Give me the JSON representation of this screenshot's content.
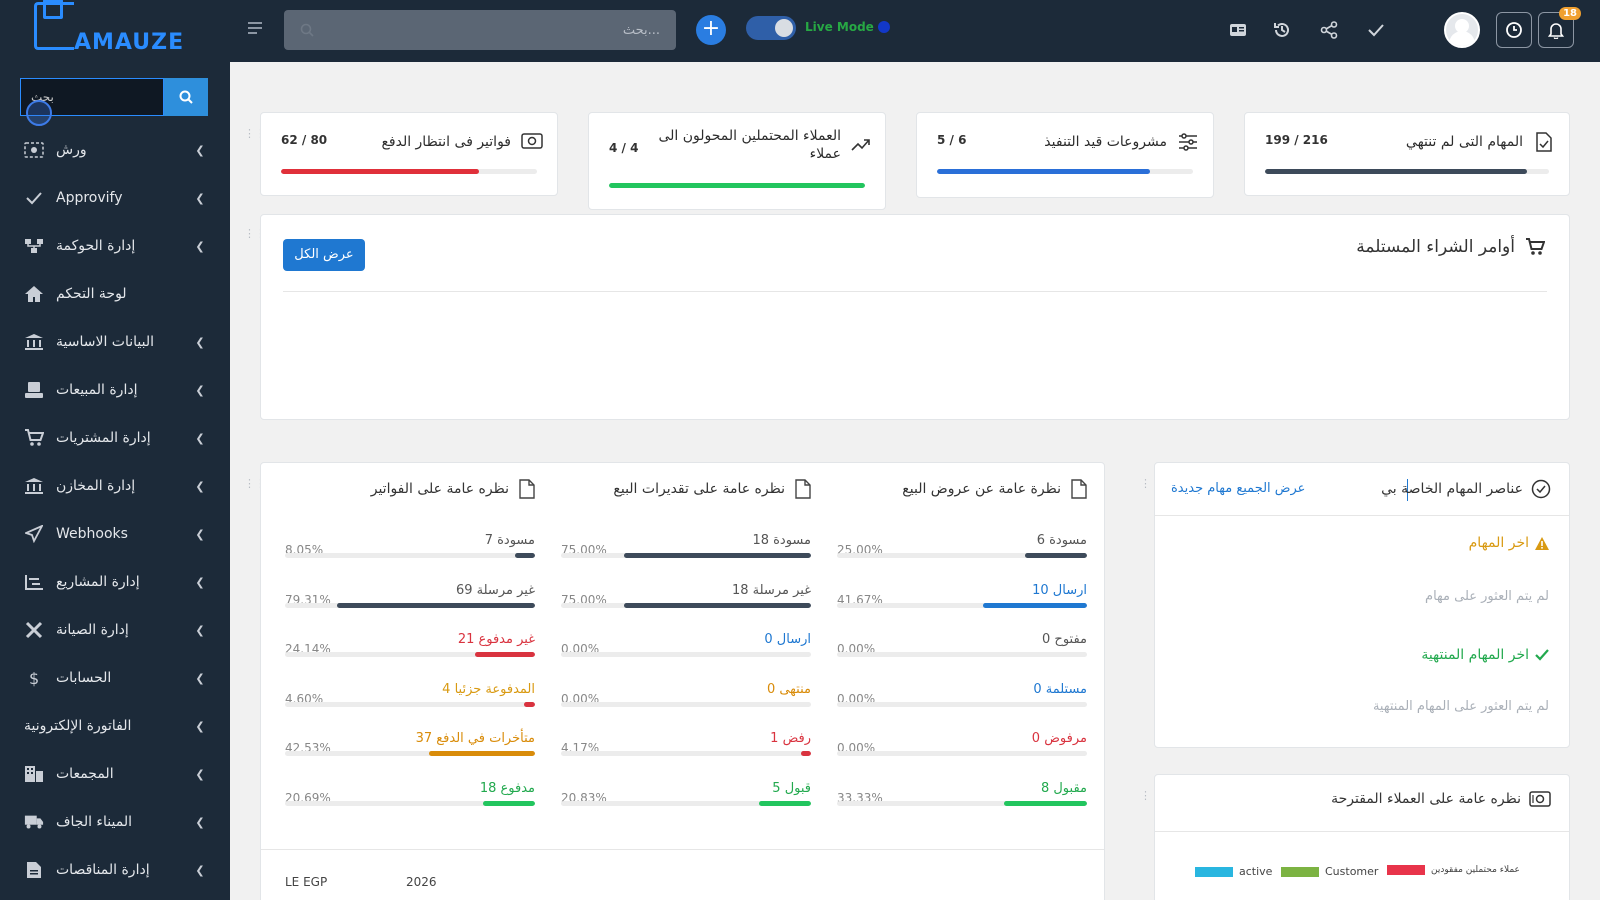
{
  "sidebar": {
    "logo_text": "AMAUZE",
    "search_placeholder": "بحث",
    "items": [
      {
        "label": "ورش",
        "icon": "workshop-icon",
        "chevron": true
      },
      {
        "label": "Approvify",
        "icon": "check-icon",
        "chevron": true
      },
      {
        "label": "إدارة الحوكمة",
        "icon": "governance-icon",
        "chevron": true
      },
      {
        "label": "لوحة التحكم",
        "icon": "home-icon",
        "chevron": false
      },
      {
        "label": "البيانات الاساسية",
        "icon": "bank-icon",
        "chevron": true
      },
      {
        "label": "إدارة المبيعات",
        "icon": "sales-icon",
        "chevron": true
      },
      {
        "label": "إدارة المشتريات",
        "icon": "cart-icon",
        "chevron": true
      },
      {
        "label": "إدارة المخازن",
        "icon": "warehouse-icon",
        "chevron": true
      },
      {
        "label": "Webhooks",
        "icon": "send-icon",
        "chevron": true
      },
      {
        "label": "إدارة المشاريع",
        "icon": "projects-icon",
        "chevron": true
      },
      {
        "label": "إدارة الصيانة",
        "icon": "tools-icon",
        "chevron": true
      },
      {
        "label": "الحسابات",
        "icon": "dollar-icon",
        "chevron": true
      },
      {
        "label": "الفاتورة الإلكترونية",
        "icon": "",
        "chevron": true
      },
      {
        "label": "المجمعات",
        "icon": "building-icon",
        "chevron": true
      },
      {
        "label": "الميناء الجاف",
        "icon": "truck-icon",
        "chevron": true
      },
      {
        "label": "إدارة المناقصات",
        "icon": "document-icon",
        "chevron": true
      }
    ]
  },
  "topbar": {
    "search_placeholder": "بحث...",
    "live_mode_label": "Live Mode",
    "notifications_count": "18"
  },
  "stats": [
    {
      "title": "فواتير فى انتظار الدفع",
      "count": "62 / 80",
      "fill": 0.775,
      "color": "#e0303a",
      "icon": "invoice-icon"
    },
    {
      "title": "العملاء المحتملين المحولون الى عملاء",
      "count": "4 / 4",
      "fill": 1.0,
      "color": "#22c55e",
      "icon": "trend-icon"
    },
    {
      "title": "مشروعات قيد التنفيذ",
      "count": "5 / 6",
      "fill": 0.833,
      "color": "#2a6fd8",
      "icon": "sliders-icon"
    },
    {
      "title": "المهام التى لم تنتهي",
      "count": "199 / 216",
      "fill": 0.921,
      "color": "#3d4a5a",
      "icon": "task-doc-icon"
    }
  ],
  "purchase_orders": {
    "title": "أوامر الشراء المستلمة",
    "view_all": "عرض الكل"
  },
  "overviews": [
    {
      "title": "نظره عامة على الفواتير",
      "rows": [
        {
          "label": "مسودة 7",
          "pct": "8.05%",
          "fill": 0.0805,
          "color": "#3d4a5a",
          "text_color": "#555"
        },
        {
          "label": "غير مرسلة 69",
          "pct": "79.31%",
          "fill": 0.7931,
          "color": "#3d4a5a",
          "text_color": "#555"
        },
        {
          "label": "غير مدفوع 21",
          "pct": "24.14%",
          "fill": 0.2414,
          "color": "#d9333f",
          "text_color": "#d9333f"
        },
        {
          "label": "المدفوعة جزئيا 4",
          "pct": "4.60%",
          "fill": 0.046,
          "color": "#d9333f",
          "text_color": "#d99a12"
        },
        {
          "label": "متأخرات في الدفع 37",
          "pct": "42.53%",
          "fill": 0.4253,
          "color": "#d98c0a",
          "text_color": "#d98c0a"
        },
        {
          "label": "مدفوع 18",
          "pct": "20.69%",
          "fill": 0.2069,
          "color": "#22c55e",
          "text_color": "#22a94e"
        }
      ]
    },
    {
      "title": "نظره عامة على تقديرات البيع",
      "rows": [
        {
          "label": "مسودة 18",
          "pct": "75.00%",
          "fill": 0.75,
          "color": "#3d4a5a",
          "text_color": "#555"
        },
        {
          "label": "غير مرسلة 18",
          "pct": "75.00%",
          "fill": 0.75,
          "color": "#3d4a5a",
          "text_color": "#555"
        },
        {
          "label": "ارسال 0",
          "pct": "0.00%",
          "fill": 0,
          "color": "#1f78d1",
          "text_color": "#1f78d1"
        },
        {
          "label": "منتهى 0",
          "pct": "0.00%",
          "fill": 0,
          "color": "#d98c0a",
          "text_color": "#d98c0a"
        },
        {
          "label": "رفض 1",
          "pct": "4.17%",
          "fill": 0.0417,
          "color": "#d9333f",
          "text_color": "#d9333f"
        },
        {
          "label": "قبول 5",
          "pct": "20.83%",
          "fill": 0.2083,
          "color": "#22c55e",
          "text_color": "#22a94e"
        }
      ]
    },
    {
      "title": "نظرة عامة عن عروض البيع",
      "rows": [
        {
          "label": "مسودة 6",
          "pct": "25.00%",
          "fill": 0.25,
          "color": "#3d4a5a",
          "text_color": "#555"
        },
        {
          "label": "ارسال 10",
          "pct": "41.67%",
          "fill": 0.4167,
          "color": "#1f78d1",
          "text_color": "#1f78d1"
        },
        {
          "label": "مفتوح 0",
          "pct": "0.00%",
          "fill": 0,
          "color": "#3d4a5a",
          "text_color": "#555"
        },
        {
          "label": "مستلمة 0",
          "pct": "0.00%",
          "fill": 0,
          "color": "#1f78d1",
          "text_color": "#1f78d1"
        },
        {
          "label": "مرفوض 0",
          "pct": "0.00%",
          "fill": 0,
          "color": "#d9333f",
          "text_color": "#d9333f"
        },
        {
          "label": "مقبول 8",
          "pct": "33.33%",
          "fill": 0.3333,
          "color": "#22c55e",
          "text_color": "#22a94e"
        }
      ]
    }
  ],
  "my_tasks": {
    "title": "عناصر المهام الخاصة بي",
    "link": "عرض الجميع مهام جديدة",
    "latest_title": "اخر المهام",
    "latest_empty": "لم يتم العثور على مهام",
    "finished_title": "اخر المهام المنتهية",
    "finished_empty": "لم يتم العثور على المهام المنتهية"
  },
  "leads": {
    "title": "نظره عامة على العملاء المقترحة",
    "legend": [
      {
        "label": "active",
        "color": "#29b6e0"
      },
      {
        "label": "Customer",
        "color": "#7cb342"
      },
      {
        "label": "عملاء محتملين مفقودين",
        "color": "#e8344a"
      }
    ]
  },
  "bottom_partial": {
    "left": "LE EGP",
    "right": "2026"
  },
  "colors": {
    "sidebar_bg": "#1c2a39",
    "accent": "#1f78d1"
  }
}
